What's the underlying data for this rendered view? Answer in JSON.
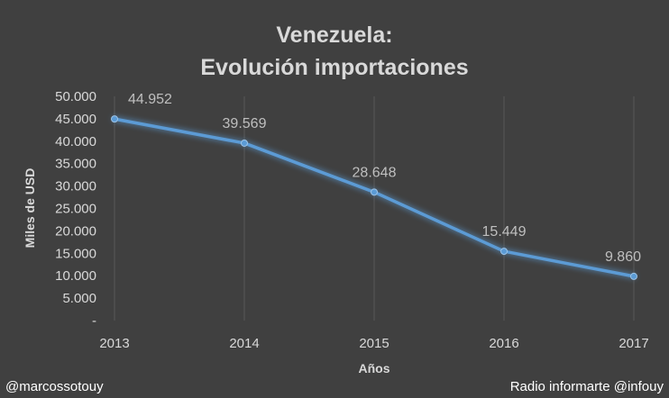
{
  "chart_data": {
    "type": "line",
    "title_line1": "Venezuela:",
    "title_line2": "Evolución importaciones",
    "xlabel": "Años",
    "ylabel": "Miles de USD",
    "categories": [
      "2013",
      "2014",
      "2015",
      "2016",
      "2017"
    ],
    "values": [
      44952,
      39569,
      28648,
      15449,
      9860
    ],
    "data_labels": [
      "44.952",
      "39.569",
      "28.648",
      "15.449",
      "9.860"
    ],
    "ylim": [
      0,
      50000
    ],
    "y_ticks": [
      0,
      5000,
      10000,
      15000,
      20000,
      25000,
      30000,
      35000,
      40000,
      45000,
      50000
    ],
    "y_tick_labels": [
      "-",
      "5.000",
      "10.000",
      "15.000",
      "20.000",
      "25.000",
      "30.000",
      "35.000",
      "40.000",
      "45.000",
      "50.000"
    ],
    "grid": "vertical",
    "legend": "none",
    "colors": {
      "background": "#404040",
      "line": "#5b9bd5",
      "grid": "#595959",
      "text": "#d9d9d9"
    }
  },
  "credits": {
    "left": "@marcossotouy",
    "right": "Radio informarte @infouy"
  }
}
